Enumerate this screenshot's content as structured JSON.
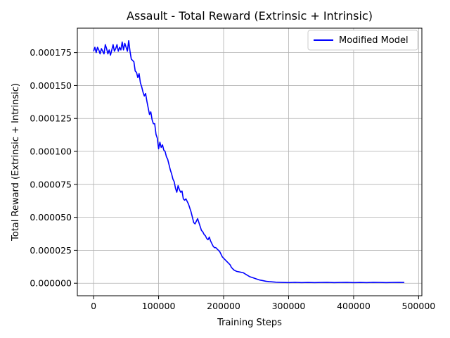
{
  "chart_data": {
    "type": "line",
    "title": "Assault - Total Reward (Extrinsic + Intrinsic)",
    "xlabel": "Training Steps",
    "ylabel": "Total Reward (Extrinsic + Intrinsic)",
    "xlim": [
      -25000,
      505000
    ],
    "ylim": [
      -9.5e-06,
      0.0001935
    ],
    "xticks": [
      0,
      100000,
      200000,
      300000,
      400000,
      500000
    ],
    "xtick_labels": [
      "0",
      "100000",
      "200000",
      "300000",
      "400000",
      "500000"
    ],
    "yticks": [
      0.0,
      2.5e-05,
      5e-05,
      7.5e-05,
      0.0001,
      0.000125,
      0.00015,
      0.000175
    ],
    "ytick_labels": [
      "0.000000",
      "0.000025",
      "0.000050",
      "0.000075",
      "0.000100",
      "0.000125",
      "0.000150",
      "0.000175"
    ],
    "grid": true,
    "legend_position": "top-right",
    "series": [
      {
        "name": "Modified Model",
        "color": "#0000ff",
        "x": [
          0,
          2000,
          4000,
          6000,
          8000,
          10000,
          12000,
          14000,
          16000,
          18000,
          20000,
          22000,
          24000,
          26000,
          28000,
          30000,
          32000,
          34000,
          36000,
          38000,
          40000,
          42000,
          44000,
          46000,
          48000,
          50000,
          52000,
          54000,
          56000,
          58000,
          60000,
          62000,
          64000,
          66000,
          68000,
          70000,
          72000,
          74000,
          76000,
          78000,
          80000,
          82000,
          84000,
          86000,
          88000,
          90000,
          92000,
          94000,
          96000,
          98000,
          100000,
          102000,
          104000,
          106000,
          108000,
          110000,
          112000,
          114000,
          116000,
          118000,
          120000,
          122000,
          124000,
          126000,
          128000,
          130000,
          132000,
          134000,
          136000,
          138000,
          140000,
          142000,
          144000,
          146000,
          148000,
          150000,
          152000,
          154000,
          156000,
          158000,
          160000,
          162000,
          164000,
          166000,
          168000,
          170000,
          172000,
          174000,
          176000,
          178000,
          180000,
          182000,
          184000,
          186000,
          188000,
          190000,
          192000,
          194000,
          196000,
          198000,
          200000,
          202000,
          204000,
          206000,
          208000,
          210000,
          212000,
          214000,
          216000,
          218000,
          220000,
          225000,
          230000,
          235000,
          240000,
          245000,
          250000,
          255000,
          260000,
          265000,
          270000,
          280000,
          290000,
          300000,
          310000,
          320000,
          330000,
          340000,
          350000,
          360000,
          370000,
          380000,
          390000,
          400000,
          410000,
          420000,
          430000,
          440000,
          450000,
          460000,
          470000,
          478000
        ],
        "y": [
          0.000176,
          0.000179,
          0.000175,
          0.000179,
          0.000177,
          0.000174,
          0.000178,
          0.000176,
          0.000174,
          0.000181,
          0.000178,
          0.000174,
          0.000177,
          0.000173,
          0.000177,
          0.000181,
          0.000176,
          0.000178,
          0.000181,
          0.000176,
          0.000179,
          0.000177,
          0.000183,
          0.000177,
          0.000182,
          0.000179,
          0.000176,
          0.000184,
          0.000176,
          0.00017,
          0.000169,
          0.000168,
          0.000161,
          0.00016,
          0.000156,
          0.000159,
          0.000152,
          0.000149,
          0.000145,
          0.000142,
          0.000144,
          0.000138,
          0.000133,
          0.000128,
          0.00013,
          0.000124,
          0.000121,
          0.000121,
          0.000113,
          0.00011,
          0.000102,
          0.000107,
          0.000103,
          0.000105,
          0.000101,
          0.0001,
          9.6e-05,
          9.4e-05,
          9e-05,
          8.6e-05,
          8.3e-05,
          7.9e-05,
          7.7e-05,
          7.2e-05,
          6.9e-05,
          7.4e-05,
          7.1e-05,
          6.9e-05,
          7e-05,
          6.4e-05,
          6.3e-05,
          6.4e-05,
          6.2e-05,
          6e-05,
          5.7e-05,
          5.4e-05,
          5e-05,
          4.6e-05,
          4.5e-05,
          4.7e-05,
          4.9e-05,
          4.6e-05,
          4.3e-05,
          4e-05,
          3.9e-05,
          3.7e-05,
          3.6e-05,
          3.4e-05,
          3.3e-05,
          3.5e-05,
          3.2e-05,
          3e-05,
          2.8e-05,
          2.7e-05,
          2.7e-05,
          2.6e-05,
          2.5e-05,
          2.4e-05,
          2.2e-05,
          2e-05,
          1.9e-05,
          1.8e-05,
          1.7e-05,
          1.6e-05,
          1.5e-05,
          1.4e-05,
          1.2e-05,
          1.1e-05,
          1e-05,
          9.5e-06,
          9e-06,
          8.5e-06,
          8e-06,
          6.5e-06,
          5e-06,
          4.2e-06,
          3.3e-06,
          2.5e-06,
          2e-06,
          1.5e-06,
          1.2e-06,
          8e-07,
          6e-07,
          5e-07,
          7e-07,
          5e-07,
          6e-07,
          5e-07,
          6e-07,
          7e-07,
          5e-07,
          6e-07,
          7e-07,
          5e-07,
          6e-07,
          5e-07,
          7e-07,
          6e-07,
          5e-07,
          6e-07,
          7e-07,
          6e-07
        ]
      }
    ]
  }
}
